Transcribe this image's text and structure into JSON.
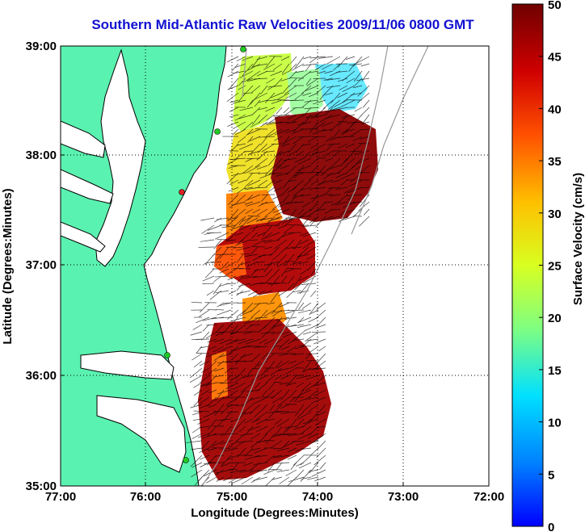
{
  "title": "Southern Mid-Atlantic Raw Velocities 2009/11/06 0800 GMT",
  "title_color": "#1010d0",
  "x_axis": {
    "label": "Longitude (Degrees:Minutes)",
    "ticks": [
      "77:00",
      "76:00",
      "75:00",
      "74:00",
      "73:00",
      "72:00"
    ],
    "range": [
      -77,
      -72
    ]
  },
  "y_axis": {
    "label": "Latitude (Degrees:Minutes)",
    "ticks": [
      "39:00",
      "38:00",
      "37:00",
      "36:00",
      "35:00"
    ],
    "range": [
      35,
      39
    ]
  },
  "colorbar": {
    "label": "Surface Velocity (cm/s)",
    "ticks": [
      "50",
      "45",
      "40",
      "35",
      "30",
      "25",
      "20",
      "15",
      "10",
      "5",
      "0"
    ],
    "range": [
      0,
      50
    ]
  },
  "colors": {
    "land": "#5af2b0",
    "coastline": "#000000",
    "station": "#22cc22",
    "station_alert": "#dd2222"
  }
}
